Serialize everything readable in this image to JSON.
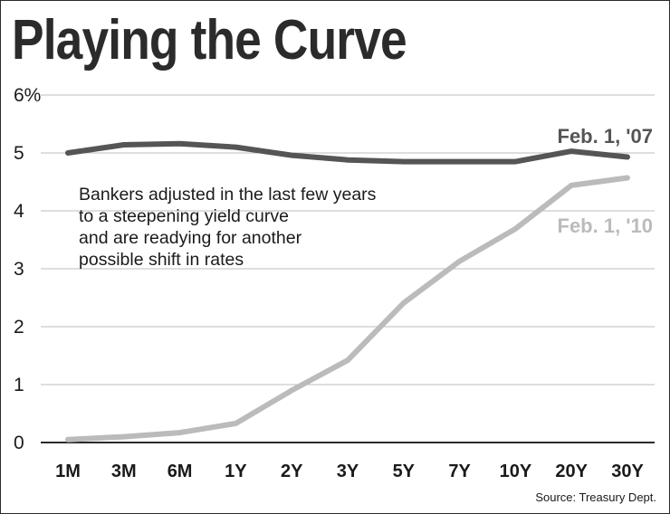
{
  "chart_data": {
    "type": "line",
    "title": "Playing the Curve",
    "categories": [
      "1M",
      "3M",
      "6M",
      "1Y",
      "2Y",
      "3Y",
      "5Y",
      "7Y",
      "10Y",
      "20Y",
      "30Y"
    ],
    "y_ticks": [
      "0",
      "1",
      "2",
      "3",
      "4",
      "5",
      "6%"
    ],
    "ylim": [
      0,
      6
    ],
    "grid": true,
    "series": [
      {
        "name": "Feb. 1, '07",
        "color": "#555555",
        "values": [
          5.0,
          5.14,
          5.16,
          5.1,
          4.96,
          4.88,
          4.85,
          4.85,
          4.85,
          5.03,
          4.93
        ]
      },
      {
        "name": "Feb. 1, '10",
        "color": "#bbbbbb",
        "values": [
          0.05,
          0.1,
          0.17,
          0.33,
          0.9,
          1.42,
          2.41,
          3.13,
          3.69,
          4.44,
          4.57
        ]
      }
    ],
    "annotation": [
      "Bankers adjusted in the last few years",
      "to a steepening yield curve",
      "and are readying for another",
      "possible shift in rates"
    ],
    "source": "Source: Treasury Dept."
  }
}
